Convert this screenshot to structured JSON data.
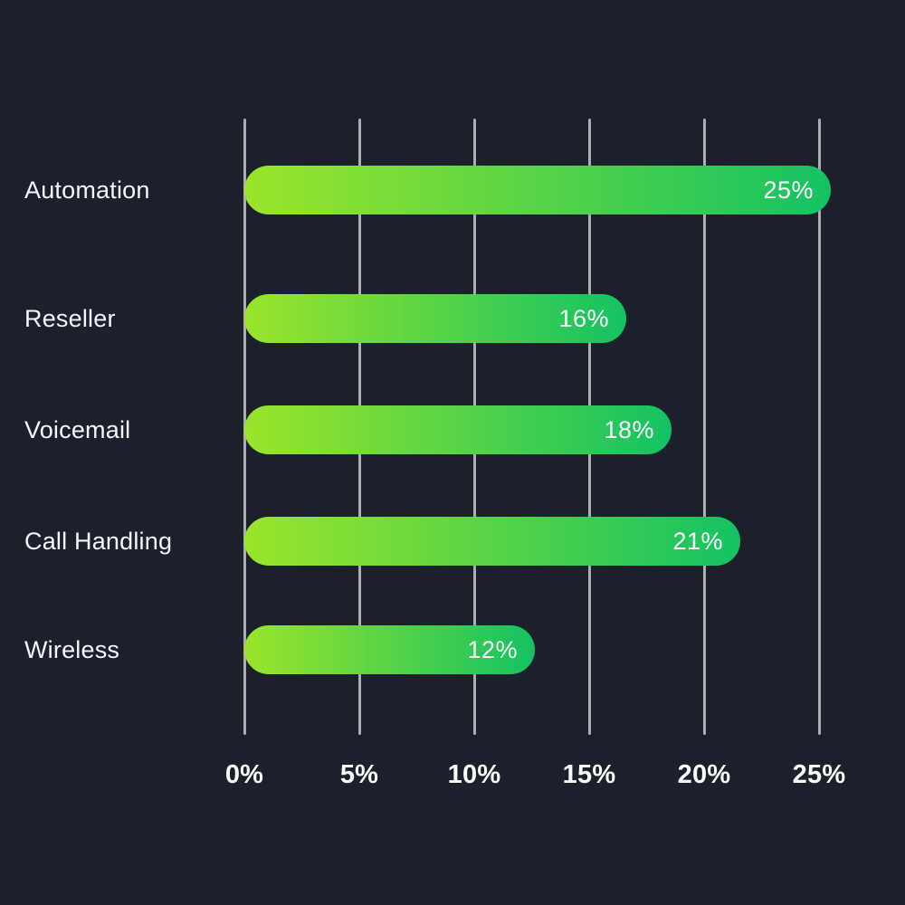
{
  "chart_data": {
    "type": "bar",
    "orientation": "horizontal",
    "title": "",
    "xlabel": "",
    "ylabel": "",
    "categories": [
      "Automation",
      "Reseller",
      "Voicemail",
      "Call Handling",
      "Wireless"
    ],
    "values": [
      25,
      16,
      18,
      21,
      12
    ],
    "value_labels": [
      "25%",
      "16%",
      "18%",
      "21%",
      "12%"
    ],
    "x_ticks": [
      "0%",
      "5%",
      "10%",
      "15%",
      "20%",
      "25%"
    ],
    "x_tick_values": [
      0,
      5,
      10,
      15,
      20,
      25
    ],
    "xlim": [
      0,
      25
    ],
    "grid": "vertical-only",
    "legend": "none",
    "colors": {
      "background": "#1B202A",
      "bar_gradient_start": "#9BE52A",
      "bar_gradient_end": "#14C263",
      "gridline": "#AAADB2",
      "category_text": "#F5F6F7",
      "value_text": "#FFFFFF",
      "tick_text": "#FFFFFF"
    }
  }
}
